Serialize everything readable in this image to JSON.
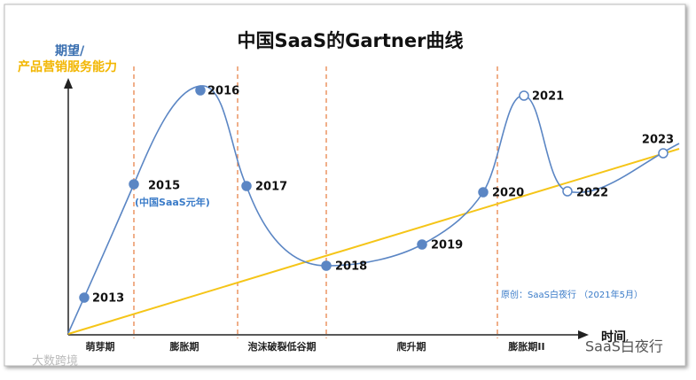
{
  "title": "中国SaaS的Gartner曲线",
  "y_axis_label": {
    "line1": "期望/",
    "line2": "产品营销服务能力"
  },
  "x_axis_label": "时间",
  "phases": [
    "萌芽期",
    "膨胀期",
    "泡沫破裂低谷期",
    "爬升期",
    "膨胀期II"
  ],
  "points": [
    "2013",
    "2015",
    "2016",
    "2017",
    "2018",
    "2019",
    "2020",
    "2021",
    "2022",
    "2023"
  ],
  "annotation": "(中国SaaS元年)",
  "source": "原创：SaaS白夜行 （2021年5月）",
  "watermarks": {
    "right": "SaaS白夜行",
    "left": "大数跨境"
  }
}
